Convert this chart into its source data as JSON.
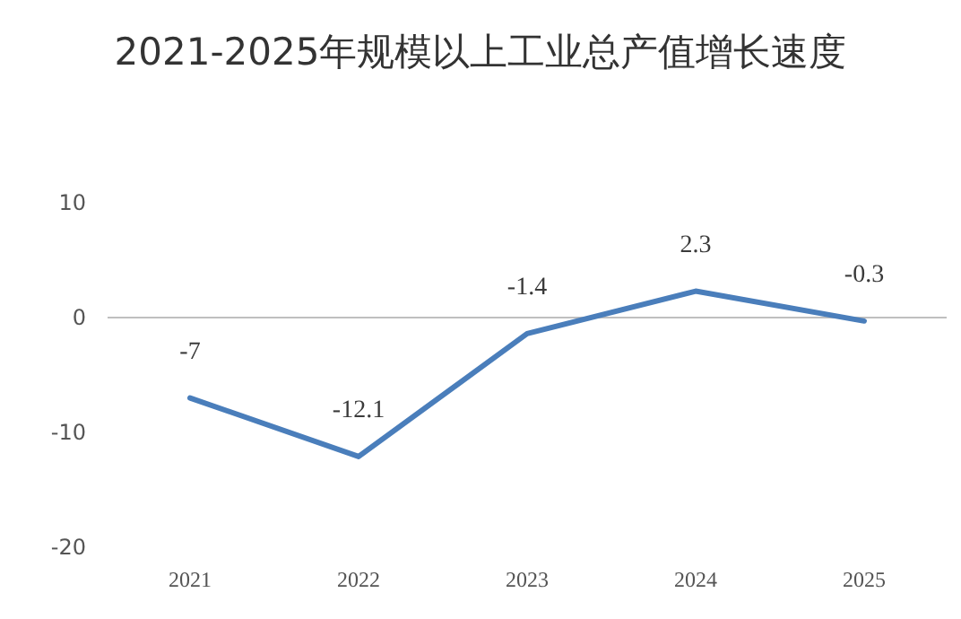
{
  "chart_data": {
    "type": "line",
    "title": "2021-2025年规模以上工业总产值增长速度",
    "categories": [
      "2021",
      "2022",
      "2023",
      "2024",
      "2025"
    ],
    "series": [
      {
        "color": "#4a7ebb",
        "values": [
          -7,
          -12.1,
          -1.4,
          2.3,
          -0.3
        ]
      }
    ],
    "ylim": [
      -20,
      10
    ],
    "yticks": [
      -20,
      -10,
      0,
      10
    ],
    "data_labels": true,
    "line_style": "solid"
  }
}
